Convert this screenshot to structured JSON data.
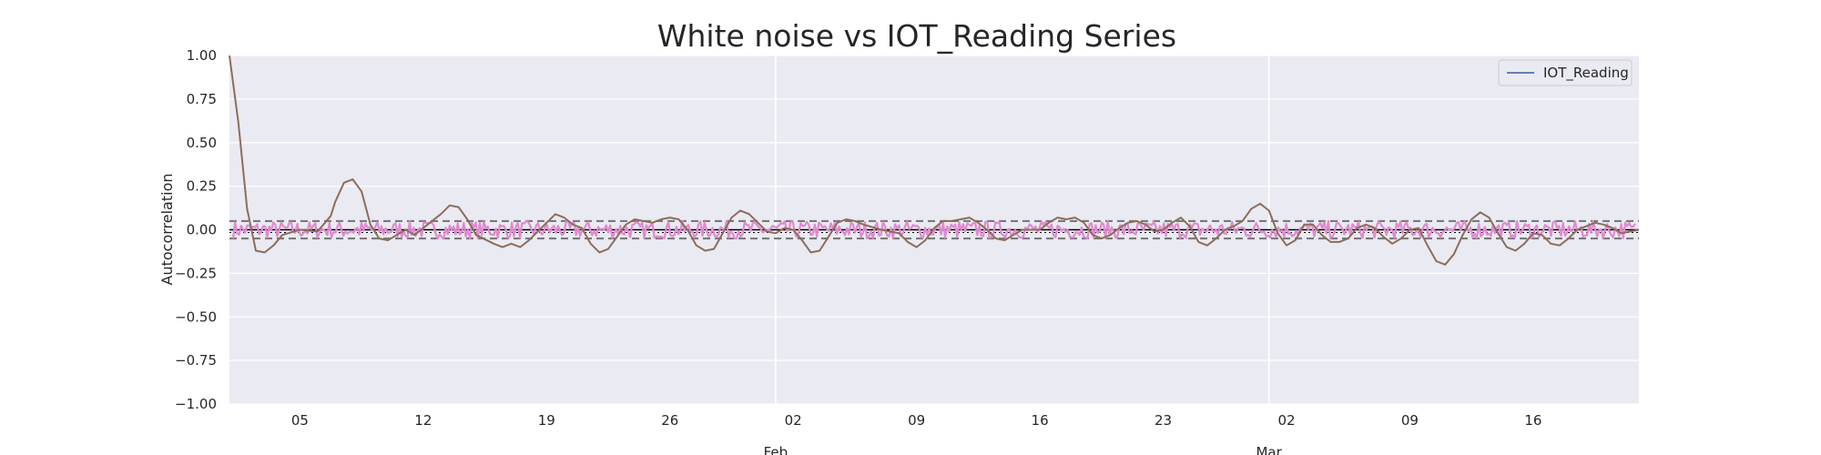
{
  "chart_data": {
    "type": "line",
    "title": "White noise vs IOT_Reading Series",
    "xlabel": "",
    "ylabel": "Autocorrelation",
    "ylim": [
      -1.0,
      1.0
    ],
    "xlim": [
      "2018-01-01",
      "2018-03-22"
    ],
    "y_ticks": [
      "1.00",
      "0.75",
      "0.50",
      "0.25",
      "0.00",
      "−0.25",
      "−0.50",
      "−0.75",
      "−1.00"
    ],
    "x_ticks": [
      {
        "date": "2018-01-05",
        "label": "05"
      },
      {
        "date": "2018-01-12",
        "label": "12"
      },
      {
        "date": "2018-01-19",
        "label": "19"
      },
      {
        "date": "2018-01-26",
        "label": "26"
      },
      {
        "date": "2018-02-02",
        "label": "02"
      },
      {
        "date": "2018-02-09",
        "label": "09"
      },
      {
        "date": "2018-02-16",
        "label": "16"
      },
      {
        "date": "2018-02-23",
        "label": "23"
      },
      {
        "date": "2018-03-02",
        "label": "02"
      },
      {
        "date": "2018-03-09",
        "label": "09"
      },
      {
        "date": "2018-03-16",
        "label": "16"
      }
    ],
    "x_major_ticks": [
      {
        "date": "2018-02-01",
        "label": "Feb"
      },
      {
        "date": "2018-03-01",
        "label": "Mar"
      }
    ],
    "grid": true,
    "legend": {
      "position": "top-right",
      "entries": [
        "IOT_Reading"
      ]
    },
    "colors": {
      "background": "#eaeaf2",
      "grid": "#ffffff",
      "iot_reading_acf": "#8c6d5a",
      "white_noise_acf": "#e08ad0",
      "confidence_band": "#7a7a7a",
      "zero_line": "#000000",
      "legend_line": "#4c72b0"
    },
    "confidence_band": [
      -0.05,
      0.05
    ],
    "series": [
      {
        "name": "IOT_Reading",
        "points": [
          [
            "2018-01-01",
            1.0
          ],
          [
            "2018-01-01T12:00",
            0.62
          ],
          [
            "2018-01-02",
            0.12
          ],
          [
            "2018-01-02T12:00",
            -0.12
          ],
          [
            "2018-01-03",
            -0.13
          ],
          [
            "2018-01-03T12:00",
            -0.09
          ],
          [
            "2018-01-04",
            -0.03
          ],
          [
            "2018-01-05",
            0.0
          ],
          [
            "2018-01-06",
            -0.01
          ],
          [
            "2018-01-06T18:00",
            0.08
          ],
          [
            "2018-01-07",
            0.16
          ],
          [
            "2018-01-07T12:00",
            0.27
          ],
          [
            "2018-01-08",
            0.29
          ],
          [
            "2018-01-08T12:00",
            0.22
          ],
          [
            "2018-01-09",
            0.03
          ],
          [
            "2018-01-09T12:00",
            -0.05
          ],
          [
            "2018-01-10",
            -0.06
          ],
          [
            "2018-01-10T12:00",
            -0.03
          ],
          [
            "2018-01-11",
            0.0
          ],
          [
            "2018-01-11T12:00",
            -0.03
          ],
          [
            "2018-01-12",
            0.01
          ],
          [
            "2018-01-12T12:00",
            0.05
          ],
          [
            "2018-01-13",
            0.09
          ],
          [
            "2018-01-13T12:00",
            0.14
          ],
          [
            "2018-01-14",
            0.13
          ],
          [
            "2018-01-14T12:00",
            0.06
          ],
          [
            "2018-01-15",
            -0.03
          ],
          [
            "2018-01-16",
            -0.08
          ],
          [
            "2018-01-16T12:00",
            -0.1
          ],
          [
            "2018-01-17",
            -0.08
          ],
          [
            "2018-01-17T12:00",
            -0.1
          ],
          [
            "2018-01-18",
            -0.06
          ],
          [
            "2018-01-18T12:00",
            -0.01
          ],
          [
            "2018-01-19",
            0.04
          ],
          [
            "2018-01-19T12:00",
            0.09
          ],
          [
            "2018-01-20",
            0.07
          ],
          [
            "2018-01-20T12:00",
            0.03
          ],
          [
            "2018-01-21",
            0.01
          ],
          [
            "2018-01-21T12:00",
            -0.08
          ],
          [
            "2018-01-22",
            -0.13
          ],
          [
            "2018-01-22T12:00",
            -0.11
          ],
          [
            "2018-01-23",
            -0.04
          ],
          [
            "2018-01-23T12:00",
            0.03
          ],
          [
            "2018-01-24",
            0.06
          ],
          [
            "2018-01-24T12:00",
            0.05
          ],
          [
            "2018-01-25",
            0.04
          ],
          [
            "2018-01-25T12:00",
            0.06
          ],
          [
            "2018-01-26",
            0.07
          ],
          [
            "2018-01-26T12:00",
            0.06
          ],
          [
            "2018-01-27",
            0.0
          ],
          [
            "2018-01-27T12:00",
            -0.09
          ],
          [
            "2018-01-28",
            -0.12
          ],
          [
            "2018-01-28T12:00",
            -0.11
          ],
          [
            "2018-01-29",
            -0.02
          ],
          [
            "2018-01-29T12:00",
            0.07
          ],
          [
            "2018-01-30",
            0.11
          ],
          [
            "2018-01-30T12:00",
            0.09
          ],
          [
            "2018-01-31",
            0.04
          ],
          [
            "2018-01-31T12:00",
            -0.01
          ],
          [
            "2018-02-01",
            -0.02
          ],
          [
            "2018-02-01T12:00",
            0.01
          ],
          [
            "2018-02-02",
            0.0
          ],
          [
            "2018-02-02T12:00",
            -0.06
          ],
          [
            "2018-02-03",
            -0.13
          ],
          [
            "2018-02-03T12:00",
            -0.12
          ],
          [
            "2018-02-04",
            -0.04
          ],
          [
            "2018-02-04T12:00",
            0.04
          ],
          [
            "2018-02-05",
            0.06
          ],
          [
            "2018-02-05T12:00",
            0.05
          ],
          [
            "2018-02-06",
            0.03
          ],
          [
            "2018-02-07",
            0.0
          ],
          [
            "2018-02-08",
            -0.02
          ],
          [
            "2018-02-08T12:00",
            -0.07
          ],
          [
            "2018-02-09",
            -0.1
          ],
          [
            "2018-02-09T12:00",
            -0.06
          ],
          [
            "2018-02-10",
            0.01
          ],
          [
            "2018-02-10T12:00",
            0.05
          ],
          [
            "2018-02-11",
            0.05
          ],
          [
            "2018-02-11T12:00",
            0.06
          ],
          [
            "2018-02-12",
            0.07
          ],
          [
            "2018-02-12T12:00",
            0.04
          ],
          [
            "2018-02-13",
            0.0
          ],
          [
            "2018-02-13T12:00",
            -0.05
          ],
          [
            "2018-02-14",
            -0.06
          ],
          [
            "2018-02-14T12:00",
            -0.03
          ],
          [
            "2018-02-15",
            0.0
          ],
          [
            "2018-02-16",
            0.0
          ],
          [
            "2018-02-16T12:00",
            0.04
          ],
          [
            "2018-02-17",
            0.07
          ],
          [
            "2018-02-17T12:00",
            0.06
          ],
          [
            "2018-02-18",
            0.07
          ],
          [
            "2018-02-18T12:00",
            0.04
          ],
          [
            "2018-02-19",
            -0.03
          ],
          [
            "2018-02-19T12:00",
            -0.05
          ],
          [
            "2018-02-20",
            -0.03
          ],
          [
            "2018-02-20T12:00",
            0.01
          ],
          [
            "2018-02-21",
            0.04
          ],
          [
            "2018-02-21T12:00",
            0.05
          ],
          [
            "2018-02-22",
            0.03
          ],
          [
            "2018-02-22T12:00",
            -0.01
          ],
          [
            "2018-02-23",
            0.0
          ],
          [
            "2018-02-23T12:00",
            0.04
          ],
          [
            "2018-02-24",
            0.07
          ],
          [
            "2018-02-24T12:00",
            0.02
          ],
          [
            "2018-02-25",
            -0.07
          ],
          [
            "2018-02-25T12:00",
            -0.09
          ],
          [
            "2018-02-26",
            -0.05
          ],
          [
            "2018-02-26T12:00",
            0.0
          ],
          [
            "2018-02-27",
            0.02
          ],
          [
            "2018-02-27T12:00",
            0.05
          ],
          [
            "2018-02-28",
            0.12
          ],
          [
            "2018-02-28T12:00",
            0.15
          ],
          [
            "2018-03-01",
            0.11
          ],
          [
            "2018-03-01T12:00",
            -0.02
          ],
          [
            "2018-03-02",
            -0.09
          ],
          [
            "2018-03-02T12:00",
            -0.06
          ],
          [
            "2018-03-03",
            0.03
          ],
          [
            "2018-03-03T12:00",
            0.03
          ],
          [
            "2018-03-04",
            -0.03
          ],
          [
            "2018-03-04T12:00",
            -0.07
          ],
          [
            "2018-03-05",
            -0.07
          ],
          [
            "2018-03-05T12:00",
            -0.05
          ],
          [
            "2018-03-06",
            0.01
          ],
          [
            "2018-03-06T12:00",
            0.03
          ],
          [
            "2018-03-07",
            0.01
          ],
          [
            "2018-03-07T12:00",
            -0.04
          ],
          [
            "2018-03-08",
            -0.08
          ],
          [
            "2018-03-08T12:00",
            -0.05
          ],
          [
            "2018-03-09",
            0.0
          ],
          [
            "2018-03-09T12:00",
            0.01
          ],
          [
            "2018-03-10",
            -0.09
          ],
          [
            "2018-03-10T12:00",
            -0.18
          ],
          [
            "2018-03-11",
            -0.2
          ],
          [
            "2018-03-11T12:00",
            -0.14
          ],
          [
            "2018-03-12",
            -0.03
          ],
          [
            "2018-03-12T12:00",
            0.06
          ],
          [
            "2018-03-13",
            0.1
          ],
          [
            "2018-03-13T12:00",
            0.07
          ],
          [
            "2018-03-14",
            -0.02
          ],
          [
            "2018-03-14T12:00",
            -0.1
          ],
          [
            "2018-03-15",
            -0.12
          ],
          [
            "2018-03-15T12:00",
            -0.08
          ],
          [
            "2018-03-16",
            -0.02
          ],
          [
            "2018-03-16T12:00",
            -0.03
          ],
          [
            "2018-03-17",
            -0.08
          ],
          [
            "2018-03-17T12:00",
            -0.09
          ],
          [
            "2018-03-18",
            -0.05
          ],
          [
            "2018-03-18T12:00",
            0.0
          ],
          [
            "2018-03-19",
            0.02
          ],
          [
            "2018-03-19T12:00",
            0.04
          ],
          [
            "2018-03-20",
            0.03
          ],
          [
            "2018-03-20T12:00",
            0.01
          ],
          [
            "2018-03-21",
            -0.02
          ],
          [
            "2018-03-21T12:00",
            -0.01
          ],
          [
            "2018-03-22",
            0.0
          ]
        ]
      },
      {
        "name": "",
        "style": "white-noise-autocorrelation",
        "description_values": {
          "range": [
            -0.05,
            0.05
          ],
          "n_points": 700
        }
      }
    ]
  }
}
